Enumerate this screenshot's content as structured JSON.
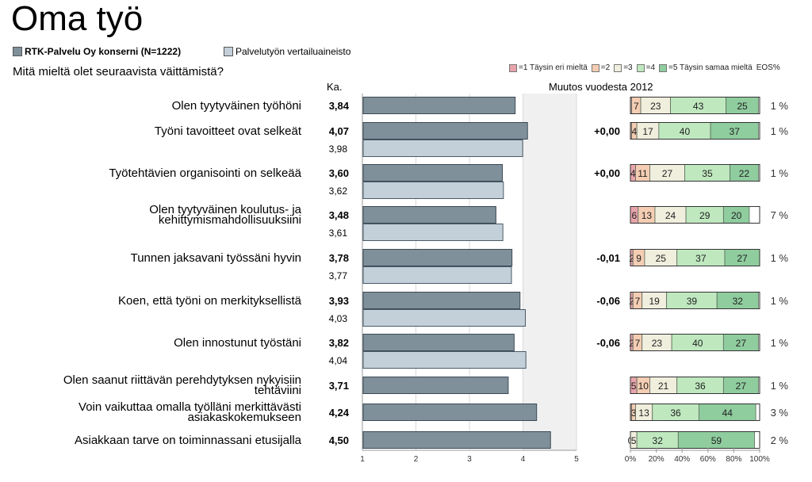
{
  "page": {
    "title": "Oma työ",
    "question": "Mitä mieltä olet seuraavista väittämistä?",
    "ka_label": "Ka.",
    "change_label": "Muutos vuodesta 2012"
  },
  "legend": {
    "series1": "RTK-Palvelu Oy konserni (N=1222)",
    "series2": "Palvelutyön vertailuaineisto"
  },
  "likert_legend": [
    {
      "label": "=1 Täysin eri mieltä",
      "color": "#e8a4ab"
    },
    {
      "label": "=2",
      "color": "#f4cdb3"
    },
    {
      "label": "=3",
      "color": "#f0eedd"
    },
    {
      "label": "=4",
      "color": "#bfe8bf"
    },
    {
      "label": "=5 Täysin samaa mieltä",
      "color": "#8fcc9e"
    },
    {
      "label": "EOS%",
      "color": ""
    }
  ],
  "chart_data": [
    {
      "type": "bar",
      "orientation": "horizontal",
      "xlim": [
        1,
        5
      ],
      "xticks": [
        "1",
        "2",
        "3",
        "4",
        "5"
      ],
      "series_colors": [
        "#7f909b",
        "#c3d0da"
      ],
      "rows": [
        {
          "label": "Olen tyytyväinen työhöni",
          "value": 3.84,
          "value_label": "3,84",
          "ref": null,
          "ref_label": "",
          "change": ""
        },
        {
          "label": "Työni tavoitteet ovat selkeät",
          "value": 4.07,
          "value_label": "4,07",
          "ref": 3.98,
          "ref_label": "3,98",
          "change": "+0,00"
        },
        {
          "label": "Työtehtävien organisointi on selkeää",
          "value": 3.6,
          "value_label": "3,60",
          "ref": 3.62,
          "ref_label": "3,62",
          "change": "+0,00"
        },
        {
          "label": "Olen tyytyväinen koulutus- ja\nkehittymismahdollisuuksiini",
          "value": 3.48,
          "value_label": "3,48",
          "ref": 3.61,
          "ref_label": "3,61",
          "change": ""
        },
        {
          "label": "Tunnen jaksavani työssäni hyvin",
          "value": 3.78,
          "value_label": "3,78",
          "ref": 3.77,
          "ref_label": "3,77",
          "change": "-0,01"
        },
        {
          "label": "Koen, että työni on merkityksellistä",
          "value": 3.93,
          "value_label": "3,93",
          "ref": 4.03,
          "ref_label": "4,03",
          "change": "-0,06"
        },
        {
          "label": "Olen innostunut työstäni",
          "value": 3.82,
          "value_label": "3,82",
          "ref": 4.04,
          "ref_label": "4,04",
          "change": "-0,06"
        },
        {
          "label": "Olen saanut riittävän perehdytyksen nykyisiin\ntehtäviini",
          "value": 3.71,
          "value_label": "3,71",
          "ref": null,
          "ref_label": "",
          "change": ""
        },
        {
          "label": "Voin vaikuttaa omalla työlläni merkittävästi\nasiakaskokemukseen",
          "value": 4.24,
          "value_label": "4,24",
          "ref": null,
          "ref_label": "",
          "change": ""
        },
        {
          "label": "Asiakkaan tarve on toiminnassani etusijalla",
          "value": 4.5,
          "value_label": "4,50",
          "ref": null,
          "ref_label": "",
          "change": ""
        }
      ]
    },
    {
      "type": "bar",
      "orientation": "horizontal",
      "stacked": true,
      "unit": "%",
      "xlim": [
        0,
        100
      ],
      "xticks": [
        "0%",
        "20%",
        "40%",
        "60%",
        "80%",
        "100%"
      ],
      "series": [
        {
          "name": "=1 Täysin eri mieltä",
          "color": "#e8a4ab"
        },
        {
          "name": "=2",
          "color": "#f4cdb3"
        },
        {
          "name": "=3",
          "color": "#f0eedd"
        },
        {
          "name": "=4",
          "color": "#bfe8bf"
        },
        {
          "name": "=5 Täysin samaa mieltä",
          "color": "#8fcc9e"
        }
      ],
      "rows": [
        {
          "values": [
            1,
            7,
            23,
            43,
            25
          ],
          "labels": [
            "",
            "7",
            "23",
            "43",
            "25"
          ],
          "eos": "1 %"
        },
        {
          "values": [
            1,
            4,
            17,
            40,
            37
          ],
          "labels": [
            "",
            "4",
            "17",
            "40",
            "37"
          ],
          "eos": "1 %"
        },
        {
          "values": [
            4,
            11,
            27,
            35,
            22
          ],
          "labels": [
            "4",
            "11",
            "27",
            "35",
            "22"
          ],
          "eos": "1 %"
        },
        {
          "values": [
            6,
            13,
            24,
            29,
            20
          ],
          "labels": [
            "6",
            "13",
            "24",
            "29",
            "20"
          ],
          "eos": "7 %"
        },
        {
          "values": [
            2,
            9,
            25,
            37,
            27
          ],
          "labels": [
            "2",
            "9",
            "25",
            "37",
            "27"
          ],
          "eos": "1 %"
        },
        {
          "values": [
            2,
            7,
            19,
            39,
            32
          ],
          "labels": [
            "2",
            "7",
            "19",
            "39",
            "32"
          ],
          "eos": "1 %"
        },
        {
          "values": [
            2,
            7,
            23,
            40,
            27
          ],
          "labels": [
            "2",
            "7",
            "23",
            "40",
            "27"
          ],
          "eos": "1 %"
        },
        {
          "values": [
            5,
            10,
            21,
            36,
            27
          ],
          "labels": [
            "5",
            "10",
            "21",
            "36",
            "27"
          ],
          "eos": "1 %"
        },
        {
          "values": [
            1,
            3,
            13,
            36,
            44
          ],
          "labels": [
            "",
            "3",
            "13",
            "36",
            "44"
          ],
          "eos": "3 %"
        },
        {
          "values": [
            0,
            0,
            5,
            32,
            59
          ],
          "labels": [
            "0",
            "",
            "5",
            "32",
            "59"
          ],
          "eos": "2 %"
        }
      ]
    }
  ]
}
